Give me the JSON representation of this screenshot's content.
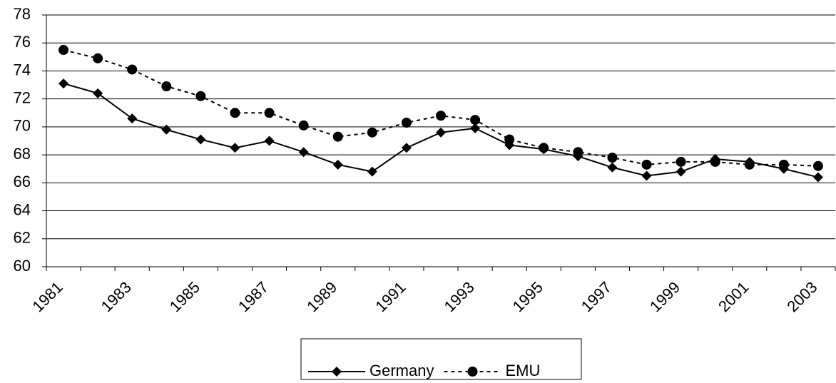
{
  "chart_data": {
    "type": "line",
    "categories": [
      "1981",
      null,
      "1983",
      null,
      "1985",
      null,
      "1987",
      null,
      "1989",
      null,
      "1991",
      null,
      "1993",
      null,
      "1995",
      null,
      "1997",
      null,
      "1999",
      null,
      "2001",
      null,
      "2003"
    ],
    "series": [
      {
        "name": "Germany",
        "color": "#000000",
        "dash": "solid",
        "marker": "diamond",
        "values": [
          73.1,
          72.4,
          70.6,
          69.8,
          69.1,
          68.5,
          69.0,
          68.2,
          67.3,
          66.8,
          68.5,
          69.6,
          69.9,
          68.7,
          68.4,
          67.9,
          67.1,
          66.5,
          66.8,
          67.7,
          67.5,
          67.0,
          66.4
        ]
      },
      {
        "name": "EMU",
        "color": "#000000",
        "dash": "dashed",
        "marker": "circle",
        "values": [
          75.5,
          74.9,
          74.1,
          72.9,
          72.2,
          71.0,
          71.0,
          70.1,
          69.3,
          69.6,
          70.3,
          70.8,
          70.5,
          69.1,
          68.5,
          68.2,
          67.8,
          67.3,
          67.5,
          67.5,
          67.3,
          67.3,
          67.2
        ]
      }
    ],
    "ylim": [
      60,
      78
    ],
    "yticks": [
      60,
      62,
      64,
      66,
      68,
      70,
      72,
      74,
      76,
      78
    ],
    "grid": true,
    "legend": "bottom"
  }
}
